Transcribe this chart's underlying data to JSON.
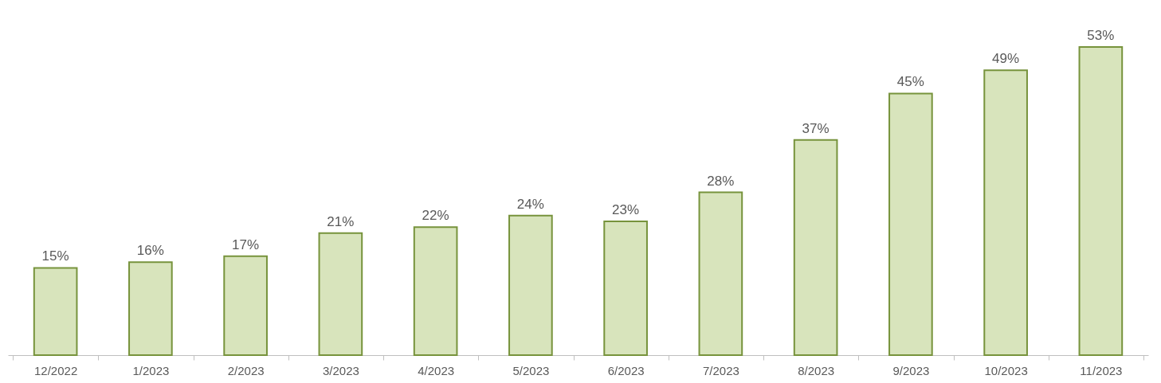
{
  "chart_data": {
    "type": "bar",
    "categories": [
      "12/2022",
      "1/2023",
      "2/2023",
      "3/2023",
      "4/2023",
      "5/2023",
      "6/2023",
      "7/2023",
      "8/2023",
      "9/2023",
      "10/2023",
      "11/2023"
    ],
    "values": [
      15,
      16,
      17,
      21,
      22,
      24,
      23,
      28,
      37,
      45,
      49,
      53
    ],
    "value_labels": [
      "15%",
      "16%",
      "17%",
      "21%",
      "22%",
      "24%",
      "23%",
      "28%",
      "37%",
      "45%",
      "49%",
      "53%"
    ],
    "color": "#d8e4bc"
  }
}
